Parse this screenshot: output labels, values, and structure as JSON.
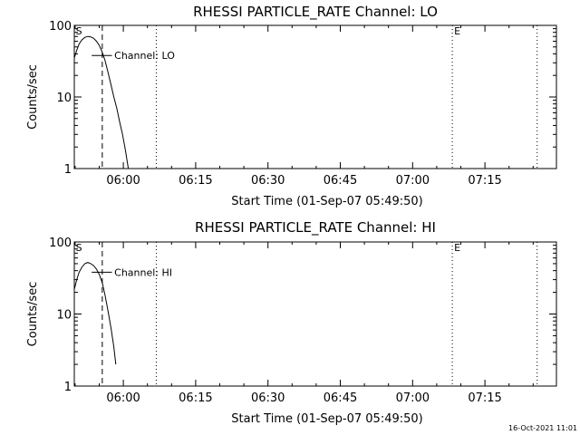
{
  "chart_data": [
    {
      "type": "line",
      "title": "RHESSI PARTICLE_RATE Channel: LO",
      "xlabel": "Start Time (01-Sep-07 05:49:50)",
      "ylabel": "Counts/sec",
      "x_tick_labels": [
        "06:00",
        "06:15",
        "06:30",
        "06:45",
        "07:00",
        "07:15"
      ],
      "x_ticks_min": [
        10.17,
        25.17,
        40.17,
        55.17,
        70.17,
        85.17
      ],
      "xlim_min": [
        0,
        100
      ],
      "y_scale": "log",
      "ylim": [
        1,
        100
      ],
      "y_tick_labels": [
        "1",
        "10",
        "100"
      ],
      "y_ticks": [
        1,
        10,
        100
      ],
      "series": [
        {
          "name": "",
          "x_min": [
            0.0,
            0.5,
            1.0,
            1.6,
            2.2,
            2.8,
            3.4,
            4.0,
            4.6,
            5.2,
            5.8,
            6.4,
            7.0,
            7.6,
            8.2,
            8.8,
            9.4,
            10.0,
            10.6,
            11.2
          ],
          "y": [
            35,
            45,
            55,
            63,
            68,
            70,
            69,
            66,
            60,
            52,
            42,
            32,
            22,
            15,
            10,
            7,
            4.5,
            3,
            1.8,
            1.0
          ]
        }
      ],
      "markers": {
        "start_label": "S",
        "end_label": "E",
        "start_min": 0.3,
        "end_min": 78.4,
        "dashed_min": 5.8,
        "dotted_min": [
          17.0,
          78.4,
          96.0
        ]
      },
      "legend": {
        "label": "Channel: LO",
        "placement": "top-left",
        "y_at": 38
      }
    },
    {
      "type": "line",
      "title": "RHESSI PARTICLE_RATE Channel: HI",
      "xlabel": "Start Time (01-Sep-07 05:49:50)",
      "ylabel": "Counts/sec",
      "x_tick_labels": [
        "06:00",
        "06:15",
        "06:30",
        "06:45",
        "07:00",
        "07:15"
      ],
      "x_ticks_min": [
        10.17,
        25.17,
        40.17,
        55.17,
        70.17,
        85.17
      ],
      "xlim_min": [
        0,
        100
      ],
      "y_scale": "log",
      "ylim": [
        1,
        100
      ],
      "y_tick_labels": [
        "1",
        "10",
        "100"
      ],
      "y_ticks": [
        1,
        10,
        100
      ],
      "series": [
        {
          "name": "",
          "x_min": [
            0.0,
            0.5,
            1.0,
            1.6,
            2.2,
            2.8,
            3.4,
            4.0,
            4.6,
            5.2,
            5.8,
            6.4,
            7.0,
            7.6,
            8.2,
            8.6
          ],
          "y": [
            22,
            30,
            38,
            45,
            50,
            52,
            50,
            47,
            42,
            35,
            27,
            18,
            11,
            6.5,
            3.5,
            2.0
          ]
        }
      ],
      "markers": {
        "start_label": "S",
        "end_label": "E",
        "start_min": 0.3,
        "end_min": 78.4,
        "dashed_min": 5.8,
        "dotted_min": [
          17.0,
          78.4,
          96.0
        ]
      },
      "legend": {
        "label": "Channel: HI",
        "placement": "top-left",
        "y_at": 38
      }
    }
  ],
  "footer": {
    "timestamp": "16-Oct-2021 11:01"
  }
}
